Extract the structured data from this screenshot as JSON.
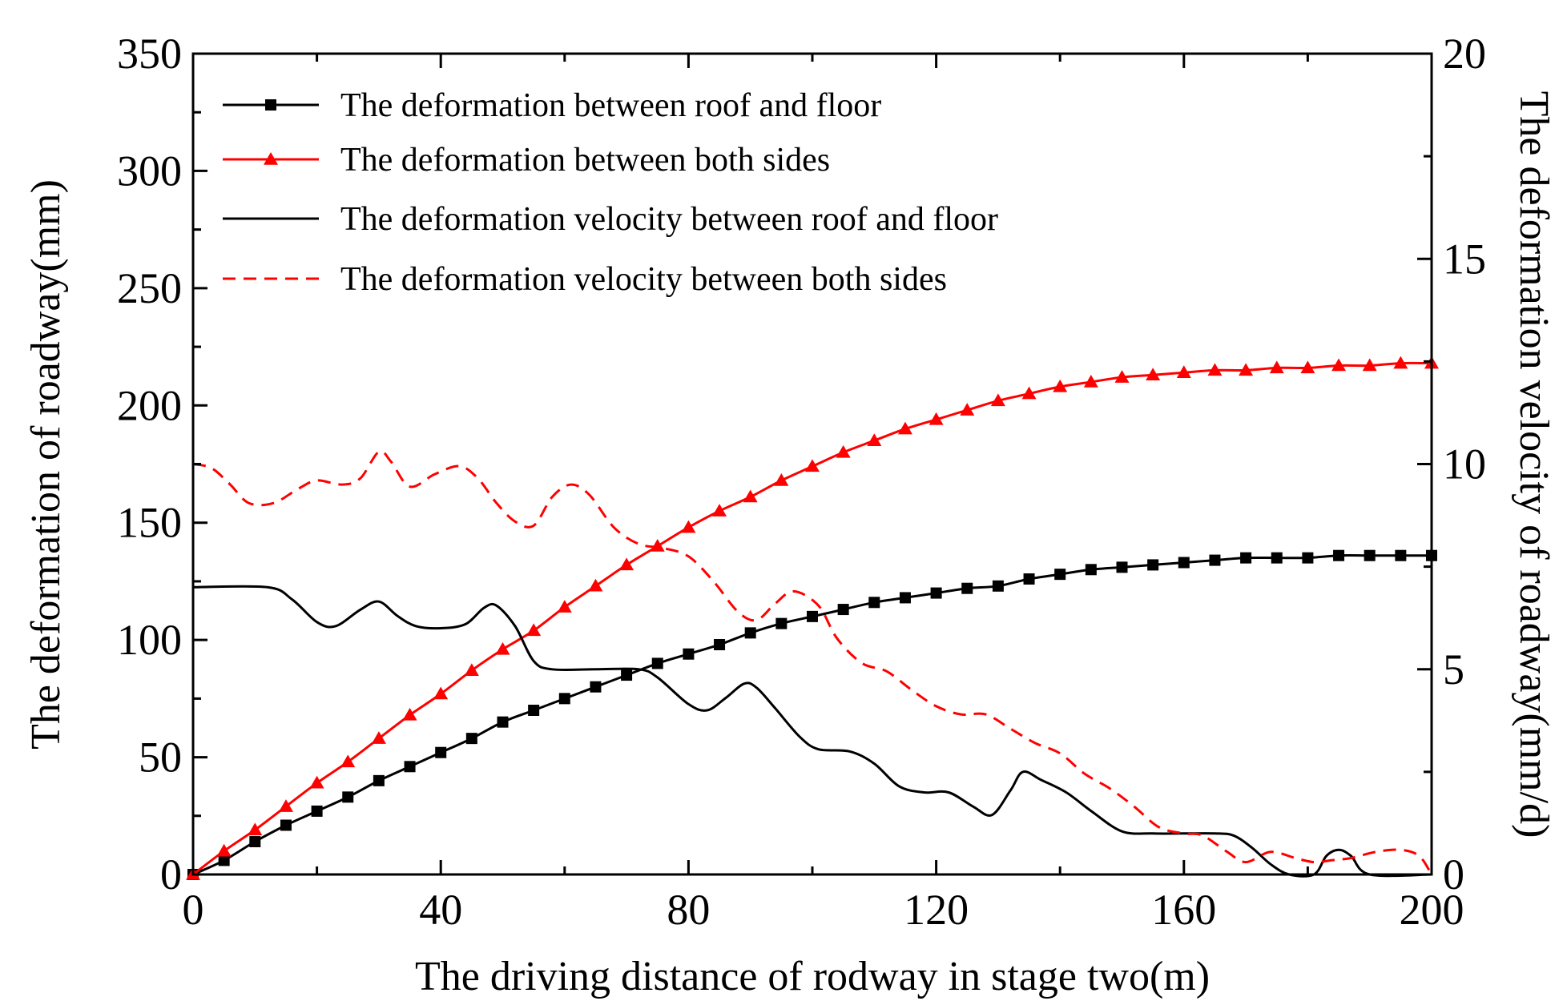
{
  "chart_data": {
    "type": "line",
    "x": [
      0,
      5,
      10,
      15,
      20,
      25,
      30,
      35,
      40,
      45,
      50,
      55,
      60,
      65,
      70,
      75,
      80,
      85,
      90,
      95,
      100,
      105,
      110,
      115,
      120,
      125,
      130,
      135,
      140,
      145,
      150,
      155,
      160,
      165,
      170,
      175,
      180,
      185,
      190,
      195,
      200
    ],
    "xlabel": "The driving distance of rodway in stage two(m)",
    "ylabel_left": "The deformation of roadway(mm)",
    "ylabel_right": "The deformation velocity of roadway(mm/d)",
    "xlim": [
      0,
      200
    ],
    "ylim_left": [
      0,
      350
    ],
    "ylim_right": [
      0,
      20
    ],
    "xticks": [
      0,
      40,
      80,
      120,
      160,
      200
    ],
    "yticks_left": [
      0,
      50,
      100,
      150,
      200,
      250,
      300,
      350
    ],
    "yticks_right": [
      0,
      5,
      10,
      15,
      20
    ],
    "legend_position": "top-left",
    "colors": {
      "black": "#000000",
      "red": "#ff0000"
    },
    "series": [
      {
        "name": "The deformation between roof and floor",
        "axis": "left",
        "color": "#000000",
        "style": "solid",
        "marker": "square",
        "values": [
          0,
          6,
          14,
          21,
          27,
          33,
          40,
          46,
          52,
          58,
          65,
          70,
          75,
          80,
          85,
          90,
          94,
          98,
          103,
          107,
          110,
          113,
          116,
          118,
          120,
          122,
          123,
          126,
          128,
          130,
          131,
          132,
          133,
          134,
          135,
          135,
          135,
          136,
          136,
          136,
          136
        ]
      },
      {
        "name": "The deformation between both sides",
        "axis": "left",
        "color": "#ff0000",
        "style": "solid",
        "marker": "triangle",
        "values": [
          0,
          10,
          19,
          29,
          39,
          48,
          58,
          68,
          77,
          87,
          96,
          104,
          114,
          123,
          132,
          140,
          148,
          155,
          161,
          168,
          174,
          180,
          185,
          190,
          194,
          198,
          202,
          205,
          208,
          210,
          212,
          213,
          214,
          215,
          215,
          216,
          216,
          217,
          217,
          218,
          218
        ]
      },
      {
        "name": "The deformation velocity between roof and floor",
        "axis": "right",
        "color": "#000000",
        "style": "solid",
        "marker": "none",
        "points": [
          [
            0,
            7.0
          ],
          [
            12,
            7.0
          ],
          [
            16,
            6.7
          ],
          [
            20,
            6.15
          ],
          [
            23,
            6.05
          ],
          [
            27,
            6.45
          ],
          [
            30,
            6.65
          ],
          [
            33,
            6.3
          ],
          [
            36,
            6.05
          ],
          [
            40,
            6.0
          ],
          [
            44,
            6.1
          ],
          [
            47,
            6.5
          ],
          [
            49,
            6.55
          ],
          [
            52,
            6.05
          ],
          [
            55,
            5.2
          ],
          [
            58,
            5.0
          ],
          [
            65,
            5.0
          ],
          [
            72,
            5.0
          ],
          [
            75,
            4.8
          ],
          [
            80,
            4.15
          ],
          [
            83,
            4.0
          ],
          [
            86,
            4.3
          ],
          [
            89,
            4.65
          ],
          [
            91,
            4.55
          ],
          [
            94,
            4.05
          ],
          [
            98,
            3.35
          ],
          [
            101,
            3.05
          ],
          [
            106,
            3.0
          ],
          [
            110,
            2.7
          ],
          [
            114,
            2.15
          ],
          [
            118,
            2.0
          ],
          [
            122,
            2.0
          ],
          [
            126,
            1.65
          ],
          [
            129,
            1.45
          ],
          [
            132,
            2.05
          ],
          [
            134,
            2.5
          ],
          [
            137,
            2.3
          ],
          [
            141,
            2.0
          ],
          [
            145,
            1.55
          ],
          [
            150,
            1.05
          ],
          [
            155,
            1.0
          ],
          [
            160,
            1.0
          ],
          [
            165,
            1.0
          ],
          [
            168,
            0.95
          ],
          [
            171,
            0.65
          ],
          [
            174,
            0.25
          ],
          [
            177,
            0.0
          ],
          [
            181,
            0.0
          ],
          [
            183,
            0.45
          ],
          [
            185,
            0.6
          ],
          [
            187,
            0.45
          ],
          [
            190,
            0.0
          ],
          [
            200,
            0.0
          ]
        ]
      },
      {
        "name": "The deformation velocity  between both sides",
        "axis": "right",
        "color": "#ff0000",
        "style": "dashed",
        "marker": "none",
        "points": [
          [
            0,
            10.0
          ],
          [
            3,
            9.9
          ],
          [
            6,
            9.5
          ],
          [
            9,
            9.05
          ],
          [
            13,
            9.05
          ],
          [
            17,
            9.4
          ],
          [
            20,
            9.6
          ],
          [
            24,
            9.5
          ],
          [
            27,
            9.65
          ],
          [
            30,
            10.3
          ],
          [
            32,
            10.05
          ],
          [
            35,
            9.45
          ],
          [
            39,
            9.75
          ],
          [
            43,
            9.95
          ],
          [
            46,
            9.65
          ],
          [
            49,
            9.05
          ],
          [
            52,
            8.6
          ],
          [
            55,
            8.5
          ],
          [
            58,
            9.2
          ],
          [
            61,
            9.5
          ],
          [
            64,
            9.25
          ],
          [
            68,
            8.45
          ],
          [
            72,
            8.05
          ],
          [
            76,
            7.95
          ],
          [
            80,
            7.75
          ],
          [
            84,
            7.15
          ],
          [
            88,
            6.4
          ],
          [
            91,
            6.2
          ],
          [
            94,
            6.6
          ],
          [
            97,
            6.9
          ],
          [
            101,
            6.55
          ],
          [
            104,
            5.75
          ],
          [
            108,
            5.15
          ],
          [
            112,
            4.95
          ],
          [
            116,
            4.5
          ],
          [
            120,
            4.1
          ],
          [
            124,
            3.9
          ],
          [
            128,
            3.9
          ],
          [
            132,
            3.55
          ],
          [
            136,
            3.2
          ],
          [
            140,
            2.95
          ],
          [
            144,
            2.45
          ],
          [
            148,
            2.1
          ],
          [
            152,
            1.65
          ],
          [
            156,
            1.15
          ],
          [
            160,
            1.0
          ],
          [
            163,
            0.95
          ],
          [
            167,
            0.55
          ],
          [
            170,
            0.3
          ],
          [
            174,
            0.55
          ],
          [
            178,
            0.4
          ],
          [
            181,
            0.3
          ],
          [
            184,
            0.35
          ],
          [
            187,
            0.4
          ],
          [
            191,
            0.55
          ],
          [
            195,
            0.6
          ],
          [
            198,
            0.45
          ],
          [
            200,
            0.0
          ]
        ]
      }
    ]
  }
}
